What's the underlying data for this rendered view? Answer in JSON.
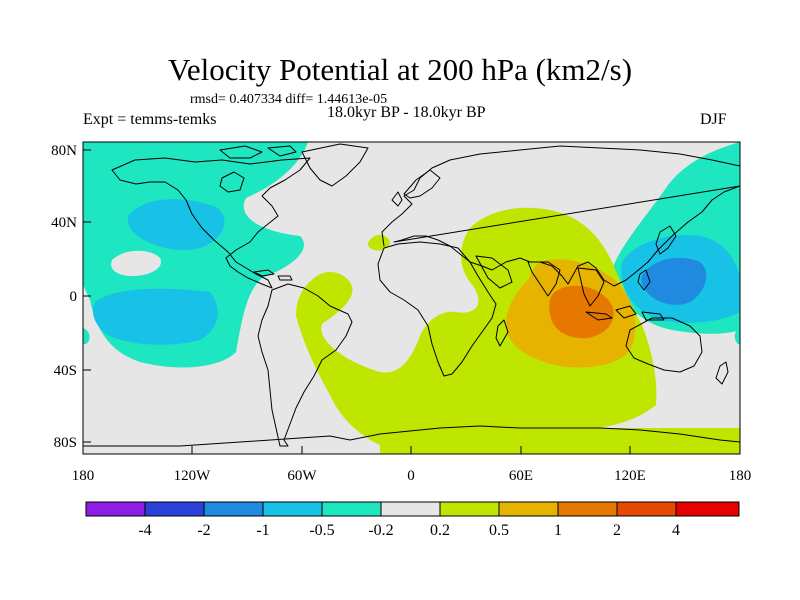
{
  "title": "Velocity Potential at 200 hPa (km2/s)",
  "stats_line": "rmsd= 0.407334 diff= 1.44613e-05",
  "expt_label": "Expt = temms-temks",
  "period_label": "18.0kyr BP - 18.0kyr BP",
  "season_label": "DJF",
  "lat_ticks": [
    "80N",
    "40N",
    "0",
    "40S",
    "80S"
  ],
  "lon_ticks": [
    "180",
    "120W",
    "60W",
    "0",
    "60E",
    "120E",
    "180"
  ],
  "colorbar": {
    "colors": [
      "#8c1ee6",
      "#2b3fd9",
      "#1f8ae0",
      "#18c2e6",
      "#1ee6c0",
      "#e6e6e6",
      "#bfe600",
      "#e6b300",
      "#e67800",
      "#e64a00",
      "#e60000"
    ],
    "labels": [
      "-4",
      "-2",
      "-1",
      "-0.5",
      "-0.2",
      "0.2",
      "0.5",
      "1",
      "2",
      "4"
    ]
  },
  "fills": {
    "background": "#e6e6e6",
    "neg_weak": "#1ee6c0",
    "neg_mid": "#18c2e6",
    "neg_strong": "#1f8ae0",
    "pos_weak": "#bfe600",
    "pos_mid": "#e6b300",
    "pos_strong": "#e67800"
  }
}
